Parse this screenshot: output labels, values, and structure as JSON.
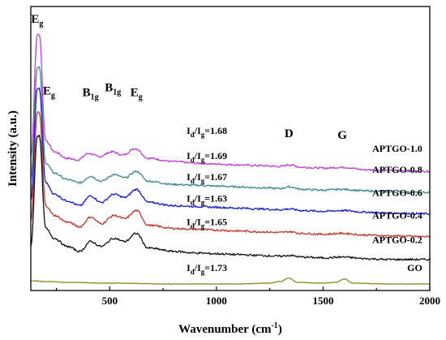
{
  "chart_data": {
    "type": "line",
    "xlabel": "Wavenumber (cm",
    "xlabel_sup": "-1",
    "xlabel_close": ")",
    "ylabel": "Intensity (a.u.)",
    "xlim": [
      130,
      2000
    ],
    "x_ticks": [
      "500",
      "1000",
      "1500",
      "2000"
    ],
    "y_ticks_shown": false,
    "grid": false,
    "series": [
      {
        "name": "APTGO-1.0",
        "color": "#c040d8",
        "baseline": 0.71,
        "points": [
          [
            130,
            0.8
          ],
          [
            165,
            1.55
          ],
          [
            200,
            0.9
          ],
          [
            240,
            0.83
          ],
          [
            300,
            0.79
          ],
          [
            350,
            0.78
          ],
          [
            400,
            0.82
          ],
          [
            450,
            0.8
          ],
          [
            510,
            0.83
          ],
          [
            560,
            0.81
          ],
          [
            620,
            0.85
          ],
          [
            680,
            0.79
          ],
          [
            800,
            0.77
          ],
          [
            900,
            0.76
          ],
          [
            1000,
            0.755
          ],
          [
            1100,
            0.75
          ],
          [
            1200,
            0.745
          ],
          [
            1300,
            0.74
          ],
          [
            1340,
            0.75
          ],
          [
            1400,
            0.735
          ],
          [
            1500,
            0.73
          ],
          [
            1590,
            0.735
          ],
          [
            1700,
            0.72
          ],
          [
            1800,
            0.715
          ],
          [
            2000,
            0.71
          ]
        ]
      },
      {
        "name": "APTGO-0.8",
        "color": "#3d8a8e",
        "baseline": 0.58,
        "points": [
          [
            130,
            0.66
          ],
          [
            165,
            1.35
          ],
          [
            200,
            0.76
          ],
          [
            240,
            0.7
          ],
          [
            300,
            0.66
          ],
          [
            360,
            0.64
          ],
          [
            410,
            0.68
          ],
          [
            460,
            0.65
          ],
          [
            520,
            0.69
          ],
          [
            570,
            0.67
          ],
          [
            625,
            0.71
          ],
          [
            680,
            0.65
          ],
          [
            800,
            0.63
          ],
          [
            900,
            0.625
          ],
          [
            1000,
            0.62
          ],
          [
            1100,
            0.615
          ],
          [
            1200,
            0.61
          ],
          [
            1300,
            0.605
          ],
          [
            1340,
            0.615
          ],
          [
            1400,
            0.6
          ],
          [
            1500,
            0.595
          ],
          [
            1590,
            0.6
          ],
          [
            1700,
            0.59
          ],
          [
            1800,
            0.585
          ],
          [
            2000,
            0.58
          ]
        ]
      },
      {
        "name": "APTGO-0.6",
        "color": "#1a1ae0",
        "baseline": 0.45,
        "points": [
          [
            130,
            0.53
          ],
          [
            165,
            1.22
          ],
          [
            200,
            0.64
          ],
          [
            240,
            0.57
          ],
          [
            300,
            0.53
          ],
          [
            360,
            0.5
          ],
          [
            410,
            0.56
          ],
          [
            460,
            0.52
          ],
          [
            520,
            0.57
          ],
          [
            570,
            0.55
          ],
          [
            625,
            0.6
          ],
          [
            680,
            0.52
          ],
          [
            800,
            0.5
          ],
          [
            900,
            0.495
          ],
          [
            1000,
            0.49
          ],
          [
            1100,
            0.485
          ],
          [
            1200,
            0.48
          ],
          [
            1300,
            0.475
          ],
          [
            1340,
            0.48
          ],
          [
            1400,
            0.47
          ],
          [
            1500,
            0.465
          ],
          [
            1590,
            0.47
          ],
          [
            1700,
            0.46
          ],
          [
            1800,
            0.455
          ],
          [
            2000,
            0.45
          ]
        ]
      },
      {
        "name": "APTGO-0.4",
        "color": "#c0392b",
        "baseline": 0.31,
        "points": [
          [
            130,
            0.4
          ],
          [
            165,
            1.07
          ],
          [
            200,
            0.5
          ],
          [
            240,
            0.44
          ],
          [
            300,
            0.4
          ],
          [
            360,
            0.37
          ],
          [
            410,
            0.43
          ],
          [
            460,
            0.39
          ],
          [
            520,
            0.44
          ],
          [
            570,
            0.42
          ],
          [
            625,
            0.47
          ],
          [
            680,
            0.38
          ],
          [
            800,
            0.36
          ],
          [
            900,
            0.355
          ],
          [
            1000,
            0.35
          ],
          [
            1100,
            0.345
          ],
          [
            1200,
            0.34
          ],
          [
            1300,
            0.335
          ],
          [
            1340,
            0.34
          ],
          [
            1400,
            0.33
          ],
          [
            1500,
            0.325
          ],
          [
            1590,
            0.33
          ],
          [
            1700,
            0.32
          ],
          [
            1800,
            0.315
          ],
          [
            2000,
            0.31
          ]
        ]
      },
      {
        "name": "APTGO-0.2",
        "color": "#111111",
        "baseline": 0.17,
        "points": [
          [
            130,
            0.25
          ],
          [
            165,
            0.93
          ],
          [
            200,
            0.36
          ],
          [
            240,
            0.3
          ],
          [
            300,
            0.25
          ],
          [
            360,
            0.22
          ],
          [
            410,
            0.28
          ],
          [
            460,
            0.25
          ],
          [
            520,
            0.3
          ],
          [
            570,
            0.28
          ],
          [
            625,
            0.33
          ],
          [
            680,
            0.24
          ],
          [
            800,
            0.22
          ],
          [
            900,
            0.21
          ],
          [
            1000,
            0.205
          ],
          [
            1100,
            0.2
          ],
          [
            1200,
            0.195
          ],
          [
            1300,
            0.19
          ],
          [
            1340,
            0.195
          ],
          [
            1400,
            0.185
          ],
          [
            1500,
            0.18
          ],
          [
            1590,
            0.185
          ],
          [
            1700,
            0.175
          ],
          [
            1800,
            0.17
          ],
          [
            2000,
            0.17
          ]
        ]
      },
      {
        "name": "GO",
        "color": "#8a8a1f",
        "baseline": 0.02,
        "points": [
          [
            130,
            0.04
          ],
          [
            200,
            0.035
          ],
          [
            300,
            0.03
          ],
          [
            500,
            0.025
          ],
          [
            800,
            0.02
          ],
          [
            1100,
            0.02
          ],
          [
            1250,
            0.025
          ],
          [
            1300,
            0.035
          ],
          [
            1340,
            0.055
          ],
          [
            1380,
            0.03
          ],
          [
            1500,
            0.025
          ],
          [
            1560,
            0.03
          ],
          [
            1600,
            0.05
          ],
          [
            1640,
            0.025
          ],
          [
            1800,
            0.02
          ],
          [
            2000,
            0.02
          ]
        ]
      }
    ],
    "labels": {
      "peaks": [
        {
          "text": "E",
          "sub": "g",
          "x": 160,
          "y": 1.62
        },
        {
          "text": "E",
          "sub": "g",
          "x": 215,
          "y": 1.18
        },
        {
          "text": "B",
          "sub": "1g",
          "x": 410,
          "y": 1.17
        },
        {
          "text": "B",
          "sub": "1g",
          "x": 515,
          "y": 1.2
        },
        {
          "text": "E",
          "sub": "g",
          "x": 625,
          "y": 1.17
        },
        {
          "text": "D",
          "sub": "",
          "x": 1340,
          "y": 0.92
        },
        {
          "text": "G",
          "sub": "",
          "x": 1590,
          "y": 0.91
        }
      ],
      "ratios": [
        {
          "prefix": "I",
          "sub1": "d",
          "mid": "/I",
          "sub2": "g",
          "value": "=1.68",
          "x": 860,
          "y": 0.94
        },
        {
          "prefix": "I",
          "sub1": "d",
          "mid": "/I",
          "sub2": "g",
          "value": "=1.69",
          "x": 860,
          "y": 0.785
        },
        {
          "prefix": "I",
          "sub1": "d",
          "mid": "/I",
          "sub2": "g",
          "value": "=1.67",
          "x": 860,
          "y": 0.655
        },
        {
          "prefix": "I",
          "sub1": "d",
          "mid": "/I",
          "sub2": "g",
          "value": "=1.63",
          "x": 860,
          "y": 0.525
        },
        {
          "prefix": "I",
          "sub1": "d",
          "mid": "/I",
          "sub2": "g",
          "value": "=1.65",
          "x": 860,
          "y": 0.38
        },
        {
          "prefix": "I",
          "sub1": "d",
          "mid": "/I",
          "sub2": "g",
          "value": "=1.73",
          "x": 860,
          "y": 0.1
        }
      ],
      "series_names": [
        {
          "text": "APTGO-1.0",
          "x": 1965,
          "y": 0.83
        },
        {
          "text": "APTGO-0.8",
          "x": 1965,
          "y": 0.7
        },
        {
          "text": "APTGO-0.6",
          "x": 1965,
          "y": 0.56
        },
        {
          "text": "APTGO-0.4",
          "x": 1965,
          "y": 0.42
        },
        {
          "text": "APTGO-0.2",
          "x": 1965,
          "y": 0.27
        },
        {
          "text": "GO",
          "x": 1965,
          "y": 0.1
        }
      ]
    },
    "ylim": [
      -0.02,
      1.72
    ]
  }
}
